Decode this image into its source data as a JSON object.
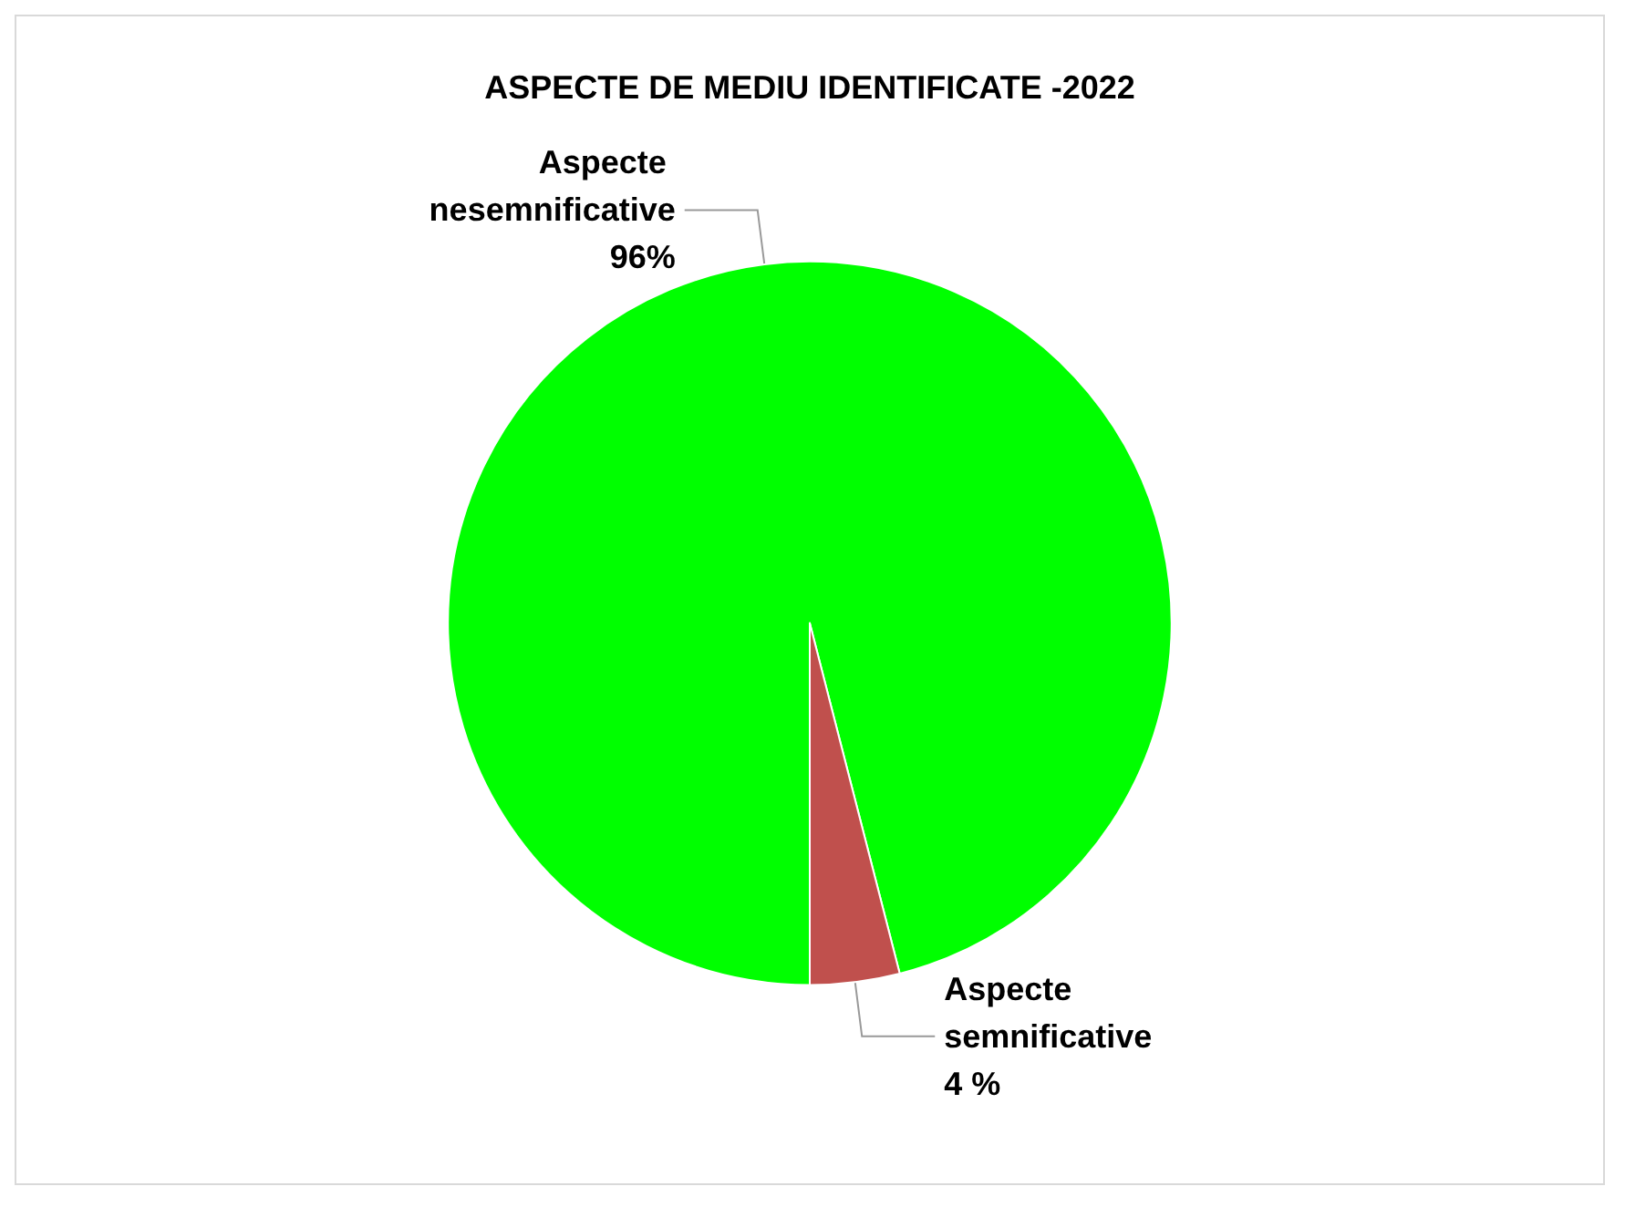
{
  "chart_data": {
    "type": "pie",
    "title": "ASPECTE DE MEDIU IDENTIFICATE -2022",
    "categories": [
      "Aspecte nesemnificative",
      "Aspecte semnificative"
    ],
    "values": [
      96,
      4
    ],
    "colors": [
      "#00ff00",
      "#c0504d"
    ],
    "value_labels": [
      "96%",
      "4 %"
    ],
    "legend": false
  }
}
